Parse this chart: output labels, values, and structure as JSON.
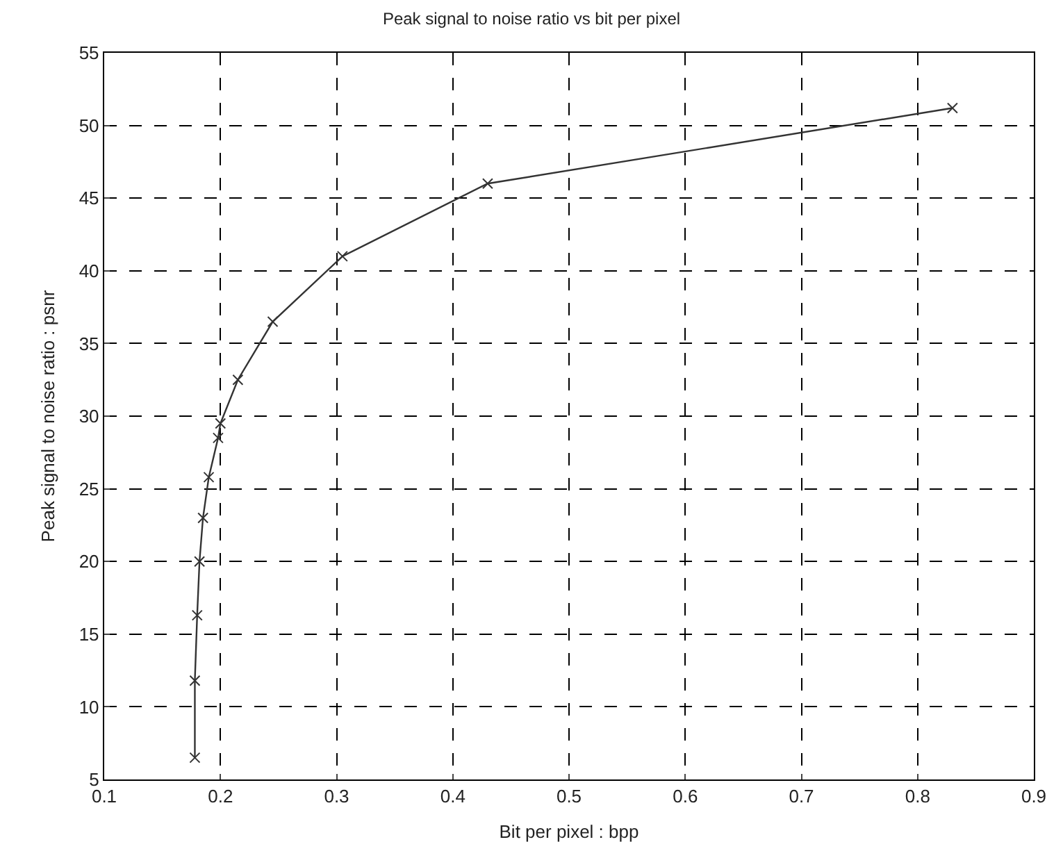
{
  "chart_data": {
    "type": "line",
    "title": "Peak signal to noise ratio vs bit per pixel",
    "xlabel": "Bit per pixel : bpp",
    "ylabel": "Peak signal to noise ratio : psnr",
    "x": [
      0.178,
      0.178,
      0.18,
      0.182,
      0.185,
      0.19,
      0.198,
      0.2,
      0.215,
      0.245,
      0.305,
      0.43,
      0.83
    ],
    "series": [
      {
        "color": "#333333",
        "values": [
          6.5,
          11.8,
          16.3,
          20,
          23,
          25.8,
          28.5,
          29.5,
          32.5,
          36.5,
          41,
          46,
          51.2
        ]
      }
    ],
    "xlim": [
      0.1,
      0.9
    ],
    "xticks": [
      0.1,
      0.2,
      0.3,
      0.4,
      0.5,
      0.6,
      0.7,
      0.8,
      0.9
    ],
    "ylim": [
      5,
      55
    ],
    "yticks": [
      5,
      10,
      15,
      20,
      25,
      30,
      35,
      40,
      45,
      50,
      55
    ],
    "grid": true,
    "marker": "cross",
    "line_style": "solid",
    "legend": false
  }
}
